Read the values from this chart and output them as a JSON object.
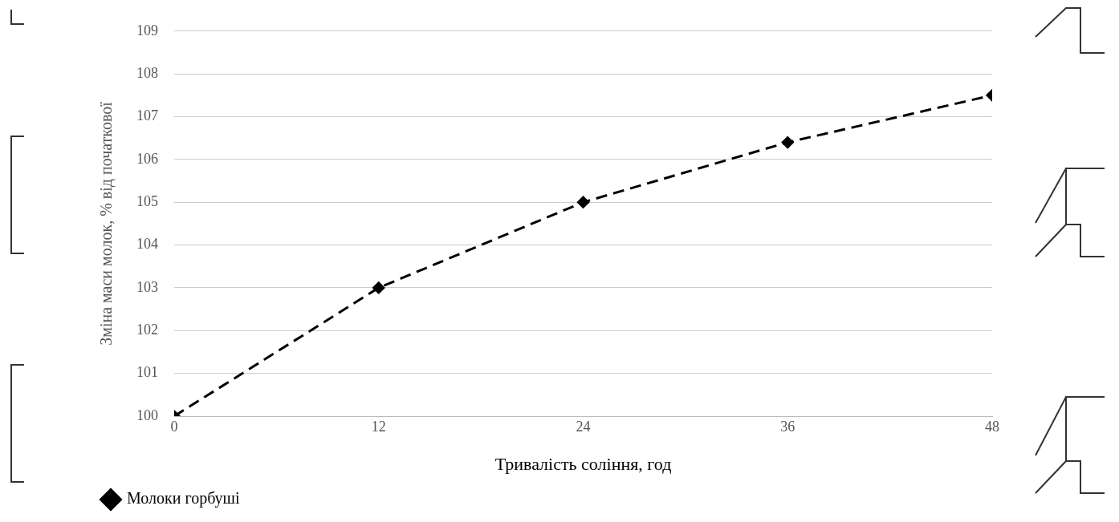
{
  "chart_data": {
    "type": "line",
    "xlabel": "Тривалість соління, год",
    "ylabel": "Зміна маси молок, % від початкової",
    "x": [
      0,
      12,
      24,
      36,
      48
    ],
    "series": [
      {
        "name": "Молоки горбуші",
        "color": "#000000",
        "values": [
          100,
          103,
          105,
          106.4,
          107.5
        ]
      }
    ],
    "xlim": [
      0,
      48
    ],
    "xticks": [
      0,
      12,
      24,
      36,
      48
    ],
    "ylim": [
      100,
      109
    ],
    "yticks": [
      100,
      101,
      102,
      103,
      104,
      105,
      106,
      107,
      108,
      109
    ],
    "grid": "y",
    "legend": "bottom",
    "marker": "diamond",
    "line_style": "dashed"
  }
}
